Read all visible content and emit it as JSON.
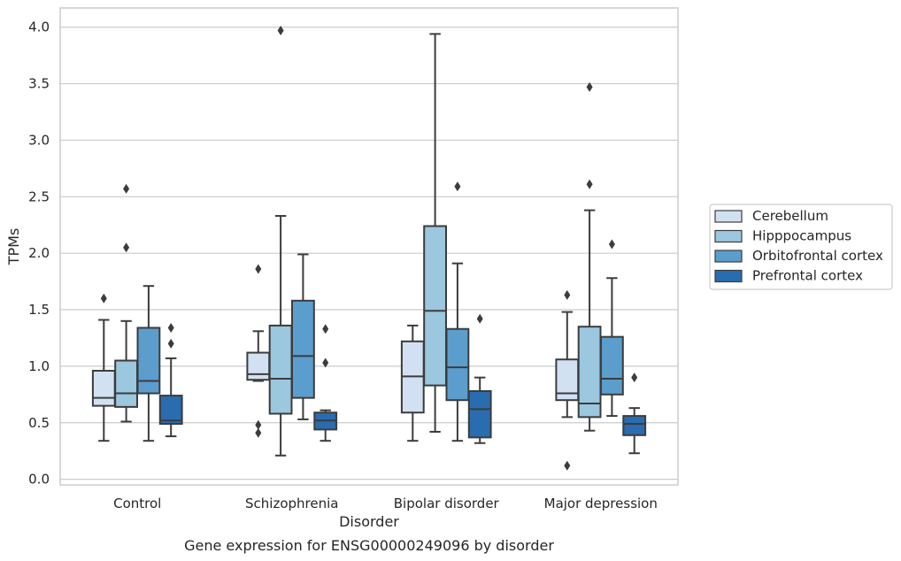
{
  "chart_data": {
    "type": "box",
    "title": "Gene expression for ENSG00000249096 by disorder",
    "xlabel": "Disorder",
    "ylabel": "TPMs",
    "ylim": [
      -0.05,
      4.17
    ],
    "yticks": [
      "0.0",
      "0.5",
      "1.0",
      "1.5",
      "2.0",
      "2.5",
      "3.0",
      "3.5",
      "4.0"
    ],
    "grid": "horizontal",
    "legend_position": "right",
    "categories": [
      "Control",
      "Schizophrenia",
      "Bipolar disorder",
      "Major depression"
    ],
    "series": [
      {
        "name": "Cerebellum",
        "color": "#d2e1f2",
        "boxes": [
          {
            "whislo": 0.34,
            "q1": 0.65,
            "med": 0.72,
            "q3": 0.96,
            "whishi": 1.41,
            "fliers": [
              1.6
            ]
          },
          {
            "whislo": 0.87,
            "q1": 0.88,
            "med": 0.93,
            "q3": 1.12,
            "whishi": 1.31,
            "fliers": [
              1.86,
              0.48,
              0.41
            ]
          },
          {
            "whislo": 0.34,
            "q1": 0.59,
            "med": 0.91,
            "q3": 1.22,
            "whishi": 1.36,
            "fliers": []
          },
          {
            "whislo": 0.55,
            "q1": 0.7,
            "med": 0.76,
            "q3": 1.06,
            "whishi": 1.48,
            "fliers": [
              1.63,
              0.12
            ]
          }
        ]
      },
      {
        "name": "Hipppocampus",
        "color": "#9bc7df",
        "boxes": [
          {
            "whislo": 0.51,
            "q1": 0.64,
            "med": 0.76,
            "q3": 1.05,
            "whishi": 1.4,
            "fliers": [
              2.57,
              2.05
            ]
          },
          {
            "whislo": 0.21,
            "q1": 0.58,
            "med": 0.89,
            "q3": 1.36,
            "whishi": 2.33,
            "fliers": [
              3.97
            ]
          },
          {
            "whislo": 0.42,
            "q1": 0.83,
            "med": 1.49,
            "q3": 2.24,
            "whishi": 3.94,
            "fliers": []
          },
          {
            "whislo": 0.43,
            "q1": 0.55,
            "med": 0.67,
            "q3": 1.35,
            "whishi": 2.38,
            "fliers": [
              3.47,
              2.61
            ]
          }
        ]
      },
      {
        "name": "Orbitofrontal cortex",
        "color": "#5b9ecd",
        "boxes": [
          {
            "whislo": 0.34,
            "q1": 0.76,
            "med": 0.87,
            "q3": 1.34,
            "whishi": 1.71,
            "fliers": []
          },
          {
            "whislo": 0.53,
            "q1": 0.72,
            "med": 1.09,
            "q3": 1.58,
            "whishi": 1.99,
            "fliers": []
          },
          {
            "whislo": 0.34,
            "q1": 0.7,
            "med": 0.99,
            "q3": 1.33,
            "whishi": 1.91,
            "fliers": [
              2.59
            ]
          },
          {
            "whislo": 0.56,
            "q1": 0.75,
            "med": 0.89,
            "q3": 1.26,
            "whishi": 1.78,
            "fliers": [
              2.08
            ]
          }
        ]
      },
      {
        "name": "Prefrontal cortex",
        "color": "#2a6cb0",
        "boxes": [
          {
            "whislo": 0.38,
            "q1": 0.49,
            "med": 0.52,
            "q3": 0.74,
            "whishi": 1.07,
            "fliers": [
              1.34,
              1.2
            ]
          },
          {
            "whislo": 0.34,
            "q1": 0.44,
            "med": 0.52,
            "q3": 0.59,
            "whishi": 0.61,
            "fliers": [
              1.33,
              1.03
            ]
          },
          {
            "whislo": 0.32,
            "q1": 0.37,
            "med": 0.62,
            "q3": 0.78,
            "whishi": 0.9,
            "fliers": [
              1.42
            ]
          },
          {
            "whislo": 0.23,
            "q1": 0.39,
            "med": 0.49,
            "q3": 0.56,
            "whishi": 0.63,
            "fliers": [
              0.9
            ]
          }
        ]
      }
    ]
  }
}
